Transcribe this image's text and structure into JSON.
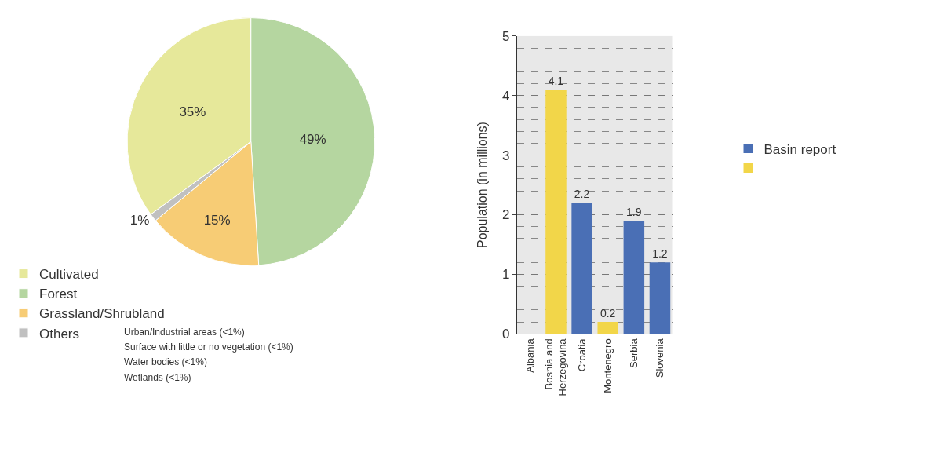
{
  "chart_data": [
    {
      "type": "pie",
      "categories": [
        "Cultivated",
        "Forest",
        "Grassland/Shrubland",
        "Others"
      ],
      "values": [
        35,
        49,
        15,
        1
      ],
      "value_labels": [
        "35%",
        "49%",
        "15%",
        "1%"
      ],
      "colors": [
        "#e6e89a",
        "#b5d6a0",
        "#f7cc75",
        "#c0c0c0"
      ],
      "legend": "bottom left",
      "annotations": [
        "Urban/Industrial areas (<1%)",
        "Surface with little or no vegetation (<1%)",
        "Water bodies (<1%)",
        "Wetlands (<1%)"
      ]
    },
    {
      "type": "bar",
      "categories": [
        "Albania",
        "Bosnia and Herzegovina",
        "Croatia",
        "Montenegro",
        "Serbia",
        "Slovenia"
      ],
      "ylabel": "Population (in millions)",
      "ylim": [
        0,
        5
      ],
      "yticks": [
        0,
        1,
        2,
        3,
        4,
        5
      ],
      "grid": "y",
      "legend": "right",
      "data_labels": true,
      "series": [
        {
          "name": "Basin report",
          "color": "#4a6fb5",
          "values": [
            null,
            null,
            2.2,
            null,
            1.9,
            1.2
          ]
        },
        {
          "color": "#f2d649",
          "values": [
            null,
            4.1,
            null,
            0.2,
            null,
            null
          ]
        }
      ]
    }
  ]
}
